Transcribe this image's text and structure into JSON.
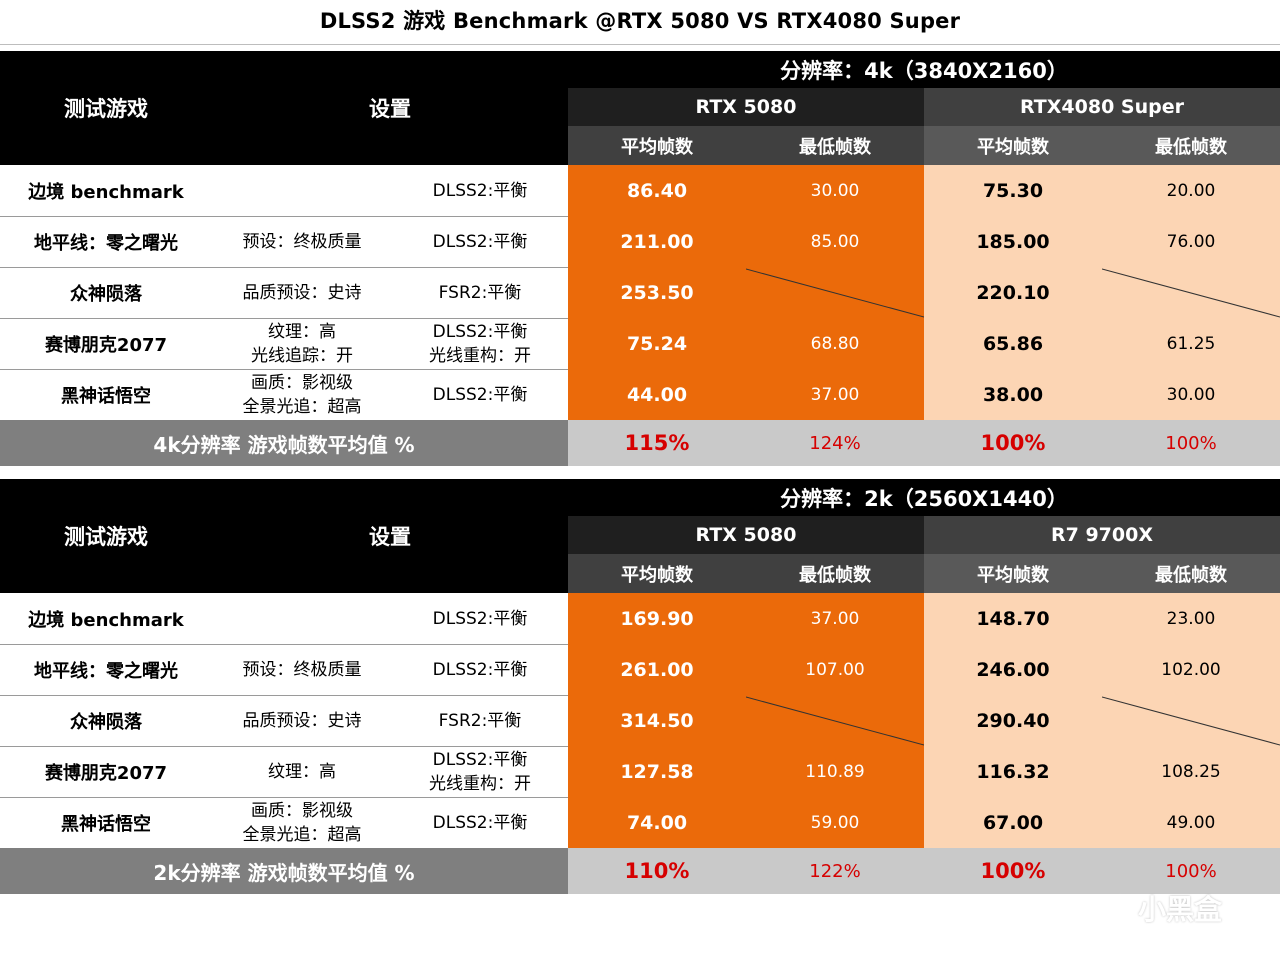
{
  "title": "DLSS2 游戏 Benchmark @RTX 5080 VS RTX4080 Super",
  "colors": {
    "orange": "#eb6a0a",
    "peach": "#fcd5b4",
    "red": "#d60000"
  },
  "watermark": "小黑盒",
  "tables": [
    {
      "resolution": "分辨率：4k（3840X2160）",
      "col_game": "测试游戏",
      "col_settings": "设置",
      "gpu_a": "RTX 5080",
      "gpu_b": "RTX4080 Super",
      "avg_label": "平均帧数",
      "min_label": "最低帧数",
      "rows": [
        {
          "game": "边境 benchmark",
          "preset": [
            "",
            ""
          ],
          "upscale": [
            "DLSS2:平衡",
            ""
          ],
          "a_avg": "86.40",
          "a_min": "30.00",
          "b_avg": "75.30",
          "b_min": "20.00"
        },
        {
          "game": "地平线：零之曙光",
          "preset": [
            "预设：终极质量",
            ""
          ],
          "upscale": [
            "DLSS2:平衡",
            ""
          ],
          "a_avg": "211.00",
          "a_min": "85.00",
          "b_avg": "185.00",
          "b_min": "76.00"
        },
        {
          "game": "众神陨落",
          "preset": [
            "品质预设：史诗",
            ""
          ],
          "upscale": [
            "FSR2:平衡",
            ""
          ],
          "a_avg": "253.50",
          "a_min": "",
          "b_avg": "220.10",
          "b_min": ""
        },
        {
          "game": "赛博朋克2077",
          "preset": [
            "纹理：高",
            "光线追踪：开"
          ],
          "upscale": [
            "DLSS2:平衡",
            "光线重构：开"
          ],
          "a_avg": "75.24",
          "a_min": "68.80",
          "b_avg": "65.86",
          "b_min": "61.25"
        },
        {
          "game": "黑神话悟空",
          "preset": [
            "画质：影视级",
            "全景光追：超高"
          ],
          "upscale": [
            "DLSS2:平衡",
            ""
          ],
          "a_avg": "44.00",
          "a_min": "37.00",
          "b_avg": "38.00",
          "b_min": "30.00"
        }
      ],
      "summary": {
        "label": "4k分辨率  游戏帧数平均值 %",
        "a_avg": "115%",
        "a_min": "124%",
        "b_avg": "100%",
        "b_min": "100%"
      }
    },
    {
      "resolution": "分辨率：2k（2560X1440）",
      "col_game": "测试游戏",
      "col_settings": "设置",
      "gpu_a": "RTX 5080",
      "gpu_b": "R7 9700X",
      "avg_label": "平均帧数",
      "min_label": "最低帧数",
      "rows": [
        {
          "game": "边境 benchmark",
          "preset": [
            "",
            ""
          ],
          "upscale": [
            "DLSS2:平衡",
            ""
          ],
          "a_avg": "169.90",
          "a_min": "37.00",
          "b_avg": "148.70",
          "b_min": "23.00"
        },
        {
          "game": "地平线：零之曙光",
          "preset": [
            "预设：终极质量",
            ""
          ],
          "upscale": [
            "DLSS2:平衡",
            ""
          ],
          "a_avg": "261.00",
          "a_min": "107.00",
          "b_avg": "246.00",
          "b_min": "102.00"
        },
        {
          "game": "众神陨落",
          "preset": [
            "品质预设：史诗",
            ""
          ],
          "upscale": [
            "FSR2:平衡",
            ""
          ],
          "a_avg": "314.50",
          "a_min": "",
          "b_avg": "290.40",
          "b_min": ""
        },
        {
          "game": "赛博朋克2077",
          "preset": [
            "纹理：高",
            ""
          ],
          "upscale": [
            "DLSS2:平衡",
            "光线重构：开"
          ],
          "a_avg": "127.58",
          "a_min": "110.89",
          "b_avg": "116.32",
          "b_min": "108.25"
        },
        {
          "game": "黑神话悟空",
          "preset": [
            "画质：影视级",
            "全景光追：超高"
          ],
          "upscale": [
            "DLSS2:平衡",
            ""
          ],
          "a_avg": "74.00",
          "a_min": "59.00",
          "b_avg": "67.00",
          "b_min": "49.00"
        }
      ],
      "summary": {
        "label": "2k分辨率  游戏帧数平均值 %",
        "a_avg": "110%",
        "a_min": "122%",
        "b_avg": "100%",
        "b_min": "100%"
      }
    }
  ],
  "chart_data": {
    "type": "table",
    "title": "DLSS2 游戏 Benchmark @RTX 5080 VS RTX4080 Super",
    "tables": [
      {
        "resolution": "4k（3840X2160）",
        "columns": [
          "测试游戏",
          "RTX 5080 平均帧数",
          "RTX 5080 最低帧数",
          "RTX4080 Super 平均帧数",
          "RTX4080 Super 最低帧数"
        ],
        "rows": [
          [
            "边境 benchmark",
            86.4,
            30.0,
            75.3,
            20.0
          ],
          [
            "地平线：零之曙光",
            211.0,
            85.0,
            185.0,
            76.0
          ],
          [
            "众神陨落",
            253.5,
            null,
            220.1,
            null
          ],
          [
            "赛博朋克2077",
            75.24,
            68.8,
            65.86,
            61.25
          ],
          [
            "黑神话悟空",
            44.0,
            37.0,
            38.0,
            30.0
          ]
        ],
        "summary": [
          "4k分辨率 游戏帧数平均值 %",
          "115%",
          "124%",
          "100%",
          "100%"
        ]
      },
      {
        "resolution": "2k（2560X1440）",
        "columns": [
          "测试游戏",
          "RTX 5080 平均帧数",
          "RTX 5080 最低帧数",
          "R7 9700X 平均帧数",
          "R7 9700X 最低帧数"
        ],
        "rows": [
          [
            "边境 benchmark",
            169.9,
            37.0,
            148.7,
            23.0
          ],
          [
            "地平线：零之曙光",
            261.0,
            107.0,
            246.0,
            102.0
          ],
          [
            "众神陨落",
            314.5,
            null,
            290.4,
            null
          ],
          [
            "赛博朋克2077",
            127.58,
            110.89,
            116.32,
            108.25
          ],
          [
            "黑神话悟空",
            74.0,
            59.0,
            67.0,
            49.0
          ]
        ],
        "summary": [
          "2k分辨率 游戏帧数平均值 %",
          "110%",
          "122%",
          "100%",
          "100%"
        ]
      }
    ]
  }
}
